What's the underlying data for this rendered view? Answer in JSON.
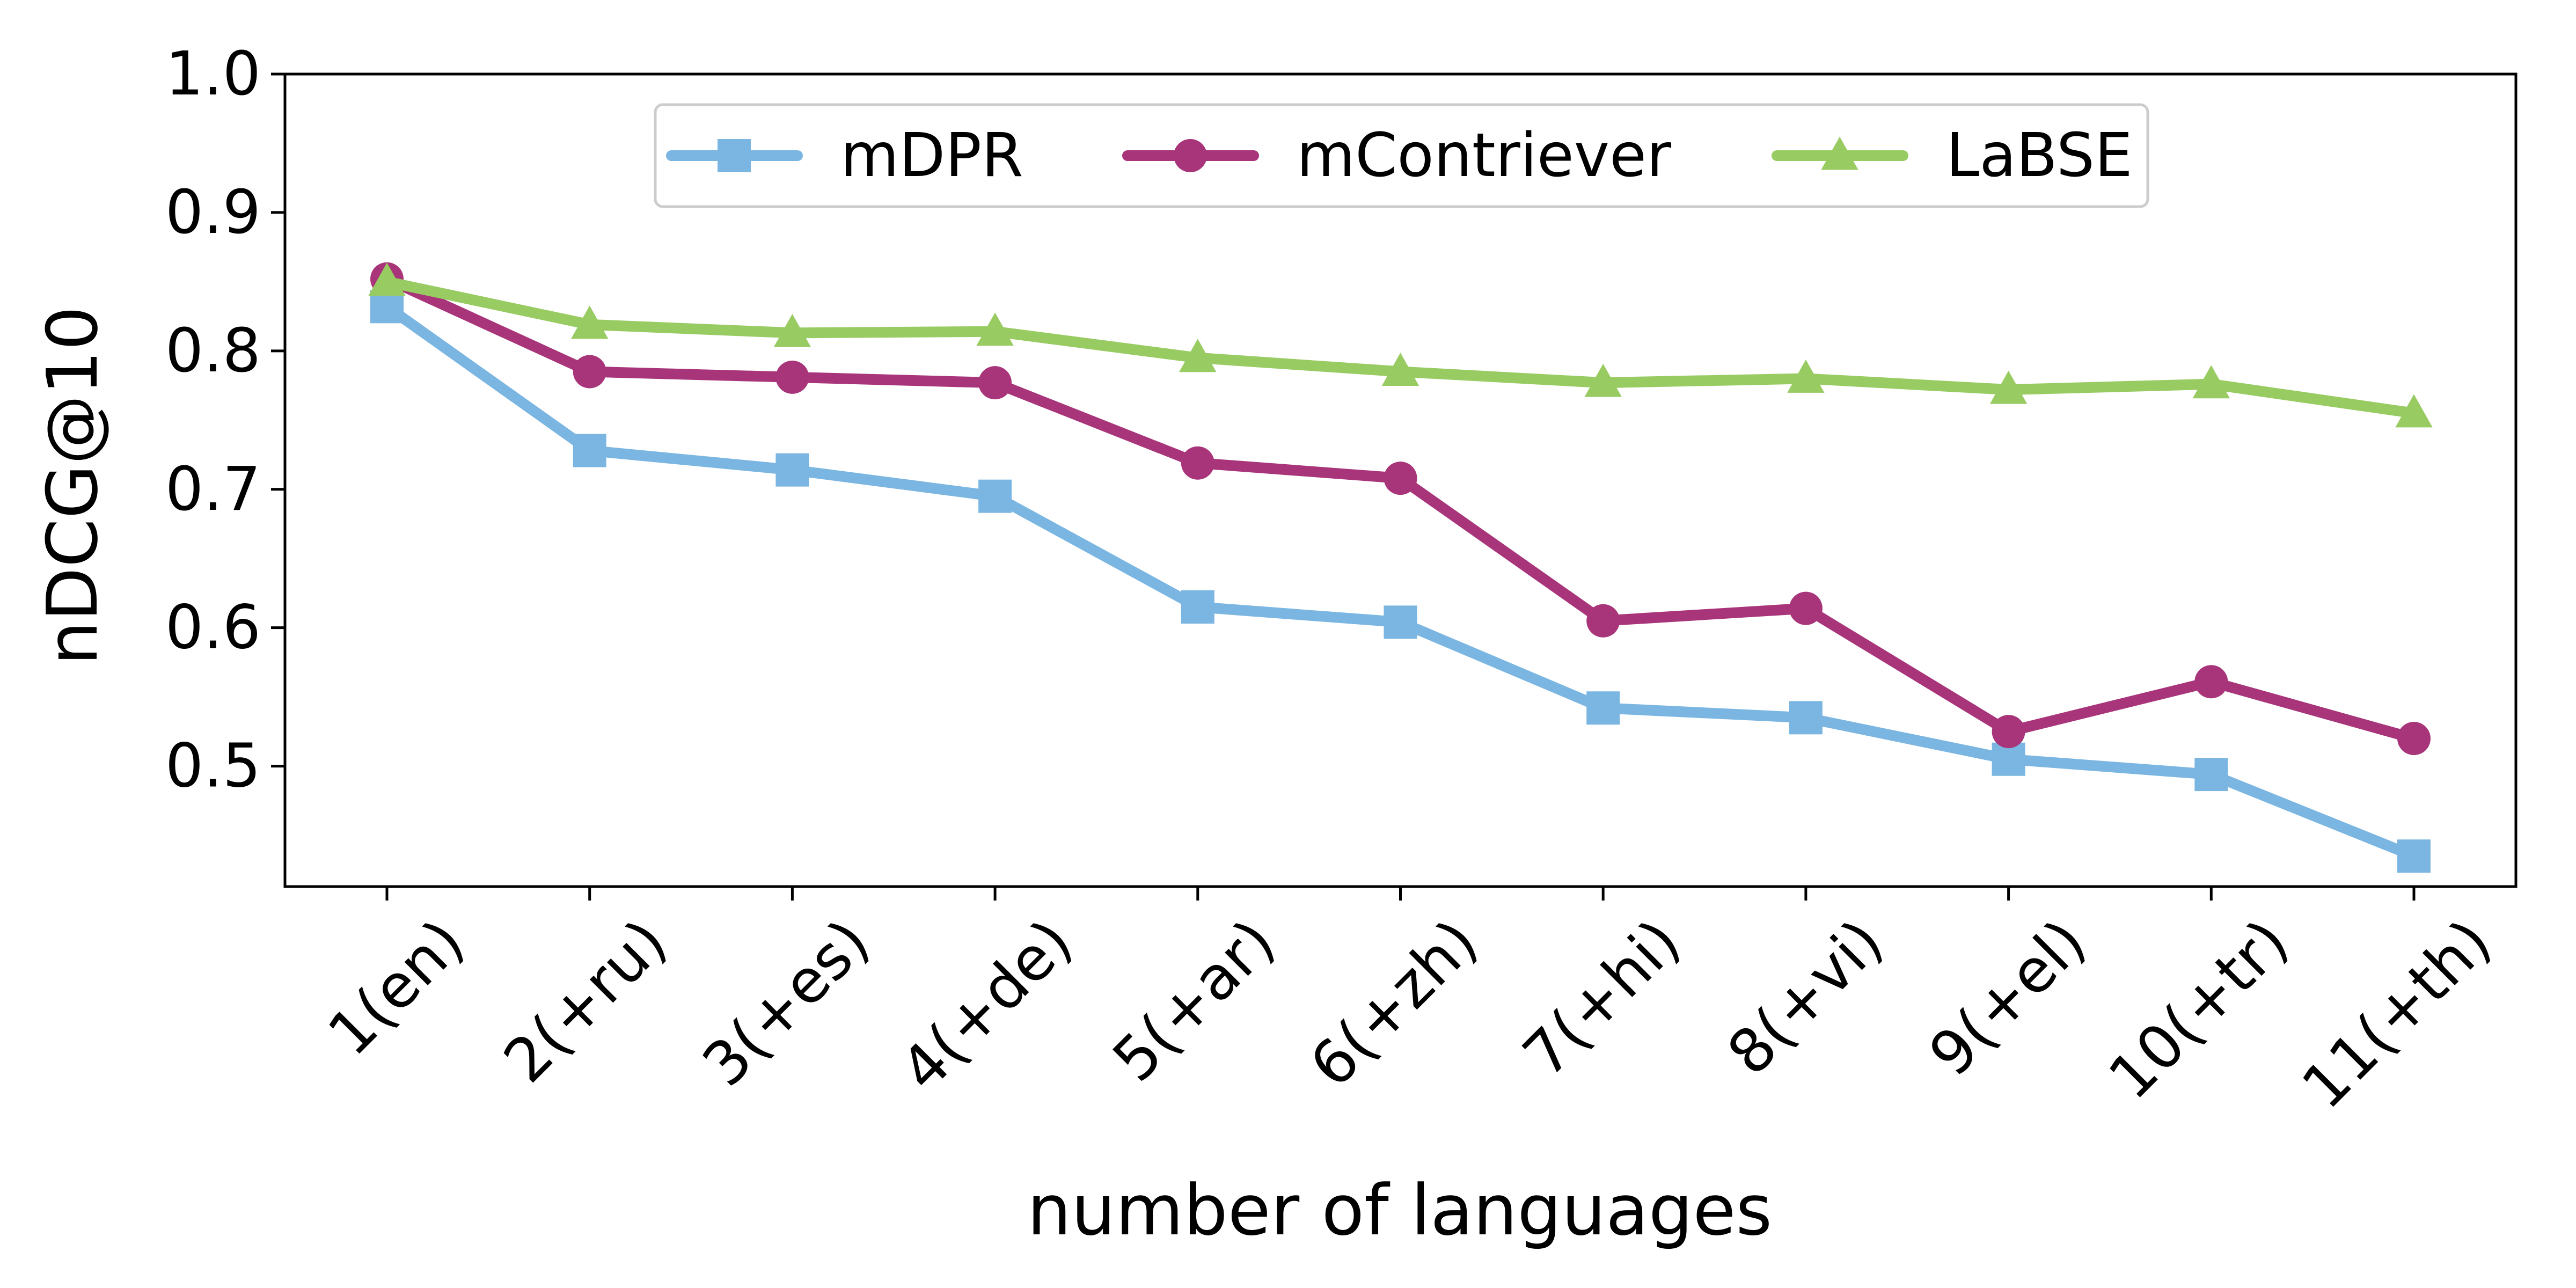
{
  "chart_data": {
    "type": "line",
    "xlabel": "number of languages",
    "ylabel": "nDCG@10",
    "categories": [
      "1(en)",
      "2(+ru)",
      "3(+es)",
      "4(+de)",
      "5(+ar)",
      "6(+zh)",
      "7(+hi)",
      "8(+vi)",
      "9(+el)",
      "10(+tr)",
      "11(+th)"
    ],
    "ylim": [
      0.413,
      1.0
    ],
    "yticks": [
      "0.5",
      "0.6",
      "0.7",
      "0.8",
      "0.9",
      "1.0"
    ],
    "grid": false,
    "legend_position": "top-center",
    "series": [
      {
        "name": "mDPR",
        "color": "#7ab6e1",
        "marker": "square",
        "values": [
          0.832,
          0.728,
          0.714,
          0.695,
          0.615,
          0.604,
          0.542,
          0.535,
          0.505,
          0.494,
          0.435
        ]
      },
      {
        "name": "mContriever",
        "color": "#a8347a",
        "marker": "circle",
        "values": [
          0.852,
          0.785,
          0.781,
          0.777,
          0.719,
          0.708,
          0.605,
          0.614,
          0.525,
          0.561,
          0.52
        ]
      },
      {
        "name": "LaBSE",
        "color": "#98cb62",
        "marker": "triangle",
        "values": [
          0.85,
          0.819,
          0.813,
          0.814,
          0.795,
          0.785,
          0.777,
          0.78,
          0.772,
          0.776,
          0.755
        ]
      }
    ]
  }
}
